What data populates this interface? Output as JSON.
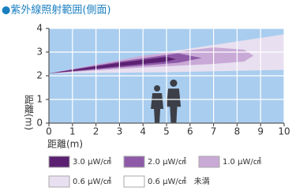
{
  "chart_data": {
    "type": "beam",
    "title": "●紫外線照射範囲(側面)",
    "xlabel": "距離(m)",
    "ylabel": "距離(m)",
    "xlim": [
      0,
      10
    ],
    "ylim": [
      0,
      4
    ],
    "xticks": [
      0,
      1,
      2,
      3,
      4,
      5,
      6,
      7,
      8,
      9,
      10
    ],
    "yticks": [
      0,
      1,
      2,
      3,
      4
    ],
    "grid": true,
    "background": "#a9cdef",
    "series": [
      {
        "name": "3.0 μW/㎠",
        "color": "#5b2071",
        "x": [
          0,
          3,
          5,
          5.4
        ],
        "upper": [
          2.1,
          2.55,
          2.8,
          2.7
        ],
        "lower": [
          2.1,
          2.4,
          2.6,
          2.7
        ]
      },
      {
        "name": "2.0 μW/㎠",
        "color": "#8e5aa8",
        "x": [
          0,
          3,
          5.5,
          6.5
        ],
        "upper": [
          2.1,
          2.6,
          2.95,
          2.75
        ],
        "lower": [
          2.1,
          2.35,
          2.55,
          2.75
        ]
      },
      {
        "name": "1.0 μW/㎠",
        "color": "#c9a9d6",
        "x": [
          0,
          4,
          7,
          8.3,
          8.7
        ],
        "upper": [
          2.1,
          2.85,
          3.2,
          3.1,
          2.85
        ],
        "lower": [
          2.1,
          2.35,
          2.5,
          2.6,
          2.85
        ]
      },
      {
        "name": "0.6 μW/㎠",
        "color": "#e8e0f0",
        "x": [
          0,
          5,
          10
        ],
        "upper": [
          2.1,
          3.0,
          3.75
        ],
        "lower": [
          2.1,
          2.15,
          2.25
        ]
      }
    ],
    "below_threshold": {
      "name": "0.6 μW/㎠　未満",
      "color": "#ffffff"
    }
  }
}
